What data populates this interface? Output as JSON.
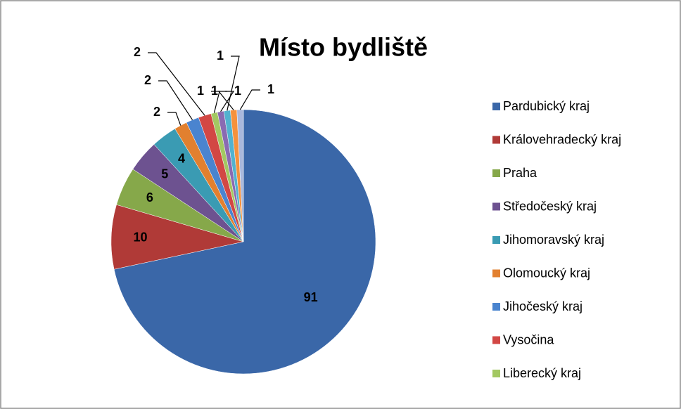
{
  "chart_data": {
    "type": "pie",
    "title": "Místo bydliště",
    "categories": [
      "Pardubický kraj",
      "Královehradecký kraj",
      "Praha",
      "Středočeský kraj",
      "Jihomoravský kraj",
      "Olomoucký kraj",
      "Jihočeský kraj",
      "Vysočina",
      "Liberecký kraj",
      null,
      null,
      null,
      null
    ],
    "values": [
      91,
      10,
      6,
      5,
      4,
      2,
      2,
      2,
      1,
      1,
      1,
      1,
      1
    ],
    "colors": [
      "#3a67a8",
      "#b03a37",
      "#86a84a",
      "#6d5290",
      "#3a9bb3",
      "#e2802f",
      "#4a84cf",
      "#d24744",
      "#a3c862",
      "#8a6ab2",
      "#52b2cf",
      "#f5913c",
      "#a9b8dc"
    ]
  }
}
